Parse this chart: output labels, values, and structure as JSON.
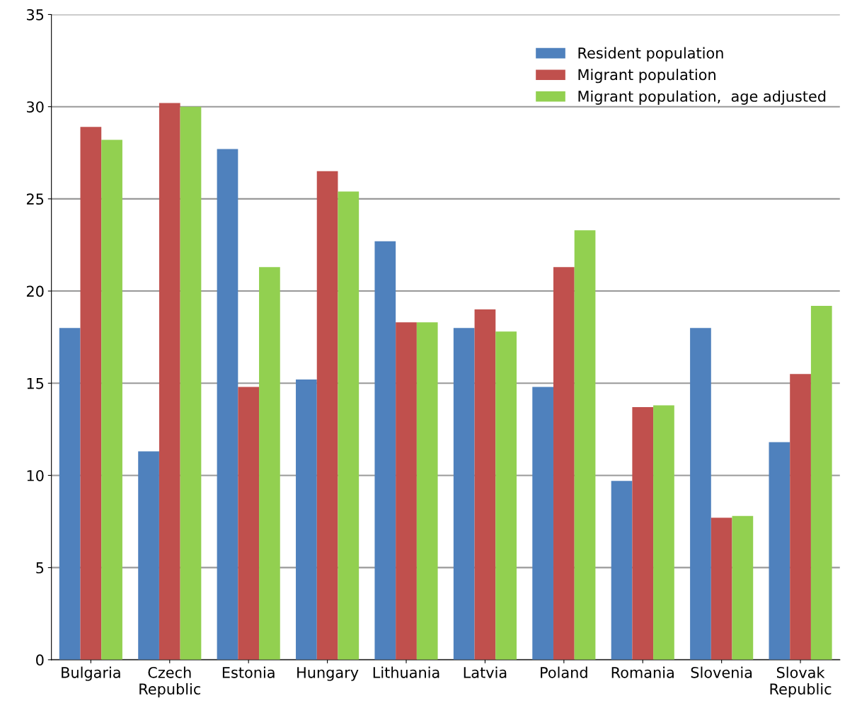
{
  "chart_data": {
    "type": "bar",
    "categories": [
      "Bulgaria",
      "Czech\nRepublic",
      "Estonia",
      "Hungary",
      "Lithuania",
      "Latvia",
      "Poland",
      "Romania",
      "Slovenia",
      "Slovak\nRepublic"
    ],
    "series": [
      {
        "name": "Resident population",
        "color": "#4f81bd",
        "values": [
          18.0,
          11.3,
          27.7,
          15.2,
          22.7,
          18.0,
          14.8,
          9.7,
          18.0,
          11.8
        ]
      },
      {
        "name": "Migrant population",
        "color": "#c0504d",
        "values": [
          28.9,
          30.2,
          14.8,
          26.5,
          18.3,
          19.0,
          21.3,
          13.7,
          7.7,
          15.5
        ]
      },
      {
        "name": "Migrant population,  age adjusted",
        "color": "#92d050",
        "values": [
          28.2,
          30.0,
          21.3,
          25.4,
          18.3,
          17.8,
          23.3,
          13.8,
          7.8,
          19.2
        ]
      }
    ],
    "ylim": [
      0,
      35
    ],
    "yticks": [
      0,
      5,
      10,
      15,
      20,
      25,
      30,
      35
    ],
    "grid": "y",
    "legend": "top right"
  }
}
